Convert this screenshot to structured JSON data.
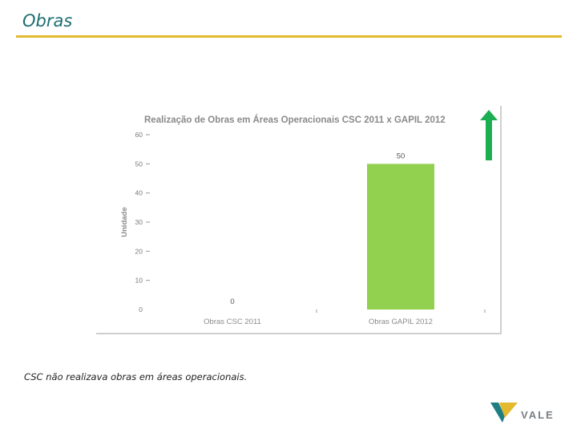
{
  "slide": {
    "title": "Obras",
    "footnote": "CSC não realizava obras em áreas operacionais."
  },
  "logo": {
    "text": "VALE"
  },
  "colors": {
    "accent_rule": "#e3b92e",
    "title": "#1f6e72",
    "bar": "#92d050",
    "arrow": "#1eae52"
  },
  "icons": {
    "trend": "up-arrow-icon"
  },
  "chart_data": {
    "type": "bar",
    "title": "Realização de Obras em Áreas Operacionais CSC 2011 x GAPIL 2012",
    "xlabel": "",
    "ylabel": "Unidade",
    "categories": [
      "Obras CSC 2011",
      "Obras GAPIL 2012"
    ],
    "values": [
      0,
      50
    ],
    "data_labels": [
      "0",
      "50"
    ],
    "ylim": [
      0,
      60
    ],
    "yticks": [
      60,
      50,
      40,
      30,
      20,
      10,
      0
    ],
    "ytick_labels": [
      "60",
      "50",
      "40",
      "30",
      "20",
      "10",
      "0"
    ],
    "grid": false,
    "legend": "none"
  }
}
